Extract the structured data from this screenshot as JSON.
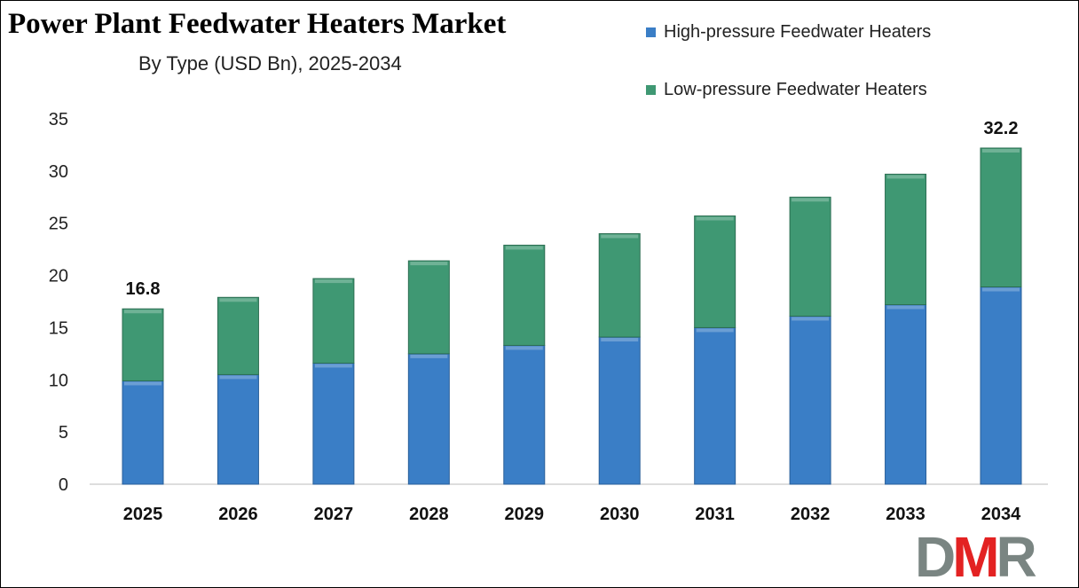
{
  "chart_data": {
    "type": "bar",
    "stacked": true,
    "title": "Power Plant Feedwater Heaters Market",
    "subtitle": "By Type (USD Bn), 2025-2034",
    "categories": [
      "2025",
      "2026",
      "2027",
      "2028",
      "2029",
      "2030",
      "2031",
      "2032",
      "2033",
      "2034"
    ],
    "series": [
      {
        "name": "High-pressure Feedwater Heaters",
        "color": "#3a7ec6",
        "values": [
          9.9,
          10.5,
          11.6,
          12.5,
          13.3,
          14.1,
          15.0,
          16.1,
          17.2,
          18.9
        ]
      },
      {
        "name": "Low-pressure Feedwater Heaters",
        "color": "#3f9873",
        "values": [
          6.9,
          7.4,
          8.1,
          8.9,
          9.6,
          9.9,
          10.7,
          11.4,
          12.5,
          13.3
        ]
      }
    ],
    "data_labels": [
      {
        "category": "2025",
        "text": "16.8"
      },
      {
        "category": "2034",
        "text": "32.2"
      }
    ],
    "yticks": [
      "0",
      "5",
      "10",
      "15",
      "20",
      "25",
      "30",
      "35"
    ],
    "ylim": [
      0,
      35
    ],
    "grid": false,
    "legend_position": "top-right",
    "xlabel": "",
    "ylabel": ""
  },
  "logo": {
    "text": "DMR",
    "colors": [
      "#7a8582",
      "#e32222",
      "#7a8582"
    ]
  }
}
